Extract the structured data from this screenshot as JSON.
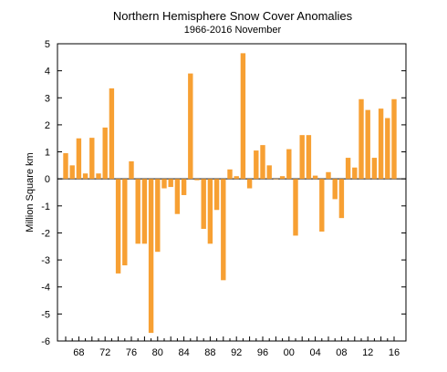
{
  "chart_data": {
    "type": "bar",
    "title": "Northern Hemisphere Snow Cover Anomalies",
    "subtitle": "1966-2016 November",
    "xlabel": "",
    "ylabel": "Million Square km",
    "ylim": [
      -6,
      5
    ],
    "yticks": [
      "-6",
      "-5",
      "-4",
      "-3",
      "-2",
      "-1",
      "0",
      "1",
      "2",
      "3",
      "4",
      "5"
    ],
    "xticks": [
      "68",
      "72",
      "76",
      "80",
      "84",
      "88",
      "92",
      "96",
      "00",
      "04",
      "08",
      "12",
      "16"
    ],
    "bar_color": "#f7a033",
    "grid": false,
    "categories": [
      "1966",
      "1967",
      "1968",
      "1969",
      "1970",
      "1971",
      "1972",
      "1973",
      "1974",
      "1975",
      "1976",
      "1977",
      "1978",
      "1979",
      "1980",
      "1981",
      "1982",
      "1983",
      "1984",
      "1985",
      "1986",
      "1987",
      "1988",
      "1989",
      "1990",
      "1991",
      "1992",
      "1993",
      "1994",
      "1995",
      "1996",
      "1997",
      "1998",
      "1999",
      "2000",
      "2001",
      "2002",
      "2003",
      "2004",
      "2005",
      "2006",
      "2007",
      "2008",
      "2009",
      "2010",
      "2011",
      "2012",
      "2013",
      "2014",
      "2015",
      "2016"
    ],
    "values": [
      0.95,
      0.5,
      1.5,
      0.2,
      1.52,
      0.2,
      1.9,
      3.35,
      -3.5,
      -3.2,
      0.65,
      -2.4,
      -2.4,
      -5.7,
      -2.7,
      -0.35,
      -0.3,
      -1.3,
      -0.6,
      3.9,
      -0.05,
      -1.85,
      -2.4,
      -1.15,
      -3.75,
      0.35,
      0.1,
      4.65,
      -0.35,
      1.05,
      1.25,
      0.5,
      0.0,
      0.1,
      1.1,
      -2.1,
      1.62,
      1.62,
      0.12,
      -1.95,
      0.25,
      -0.75,
      -1.45,
      0.78,
      0.42,
      2.95,
      2.55,
      0.78,
      2.6,
      2.25,
      2.95
    ]
  }
}
